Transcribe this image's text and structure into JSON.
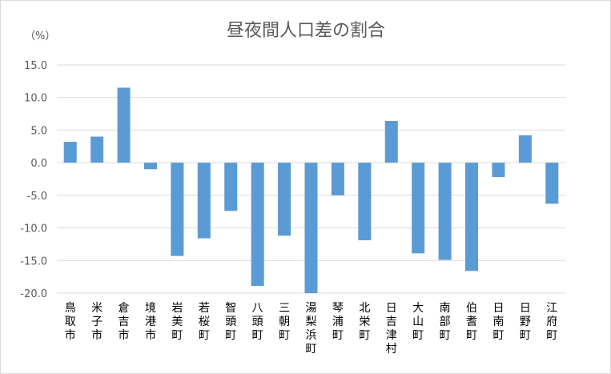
{
  "chart_data": {
    "type": "bar",
    "title": "昼夜間人口差の割合",
    "unit_label": "（%）",
    "xlabel": "",
    "ylabel": "",
    "ylim": [
      -20,
      15
    ],
    "yticks": [
      "15.0",
      "10.0",
      "5.0",
      "0.0",
      "-5.0",
      "-10.0",
      "-15.0",
      "-20.0"
    ],
    "ytick_values": [
      15,
      10,
      5,
      0,
      -5,
      -10,
      -15,
      -20
    ],
    "grid": true,
    "legend": "none",
    "bar_color": "#5b9bd5",
    "categories": [
      "鳥取市",
      "米子市",
      "倉吉市",
      "境港市",
      "岩美町",
      "若桜町",
      "智頭町",
      "八頭町",
      "三朝町",
      "湯梨浜町",
      "琴浦町",
      "北栄町",
      "日吉津村",
      "大山町",
      "南部町",
      "伯耆町",
      "日南町",
      "日野町",
      "江府町"
    ],
    "values": [
      3.2,
      4.0,
      11.5,
      -1.0,
      -14.3,
      -11.6,
      -7.4,
      -18.9,
      -11.2,
      -20.0,
      -5.0,
      -11.9,
      6.4,
      -13.9,
      -14.9,
      -16.6,
      -2.2,
      4.2,
      -6.3
    ]
  }
}
